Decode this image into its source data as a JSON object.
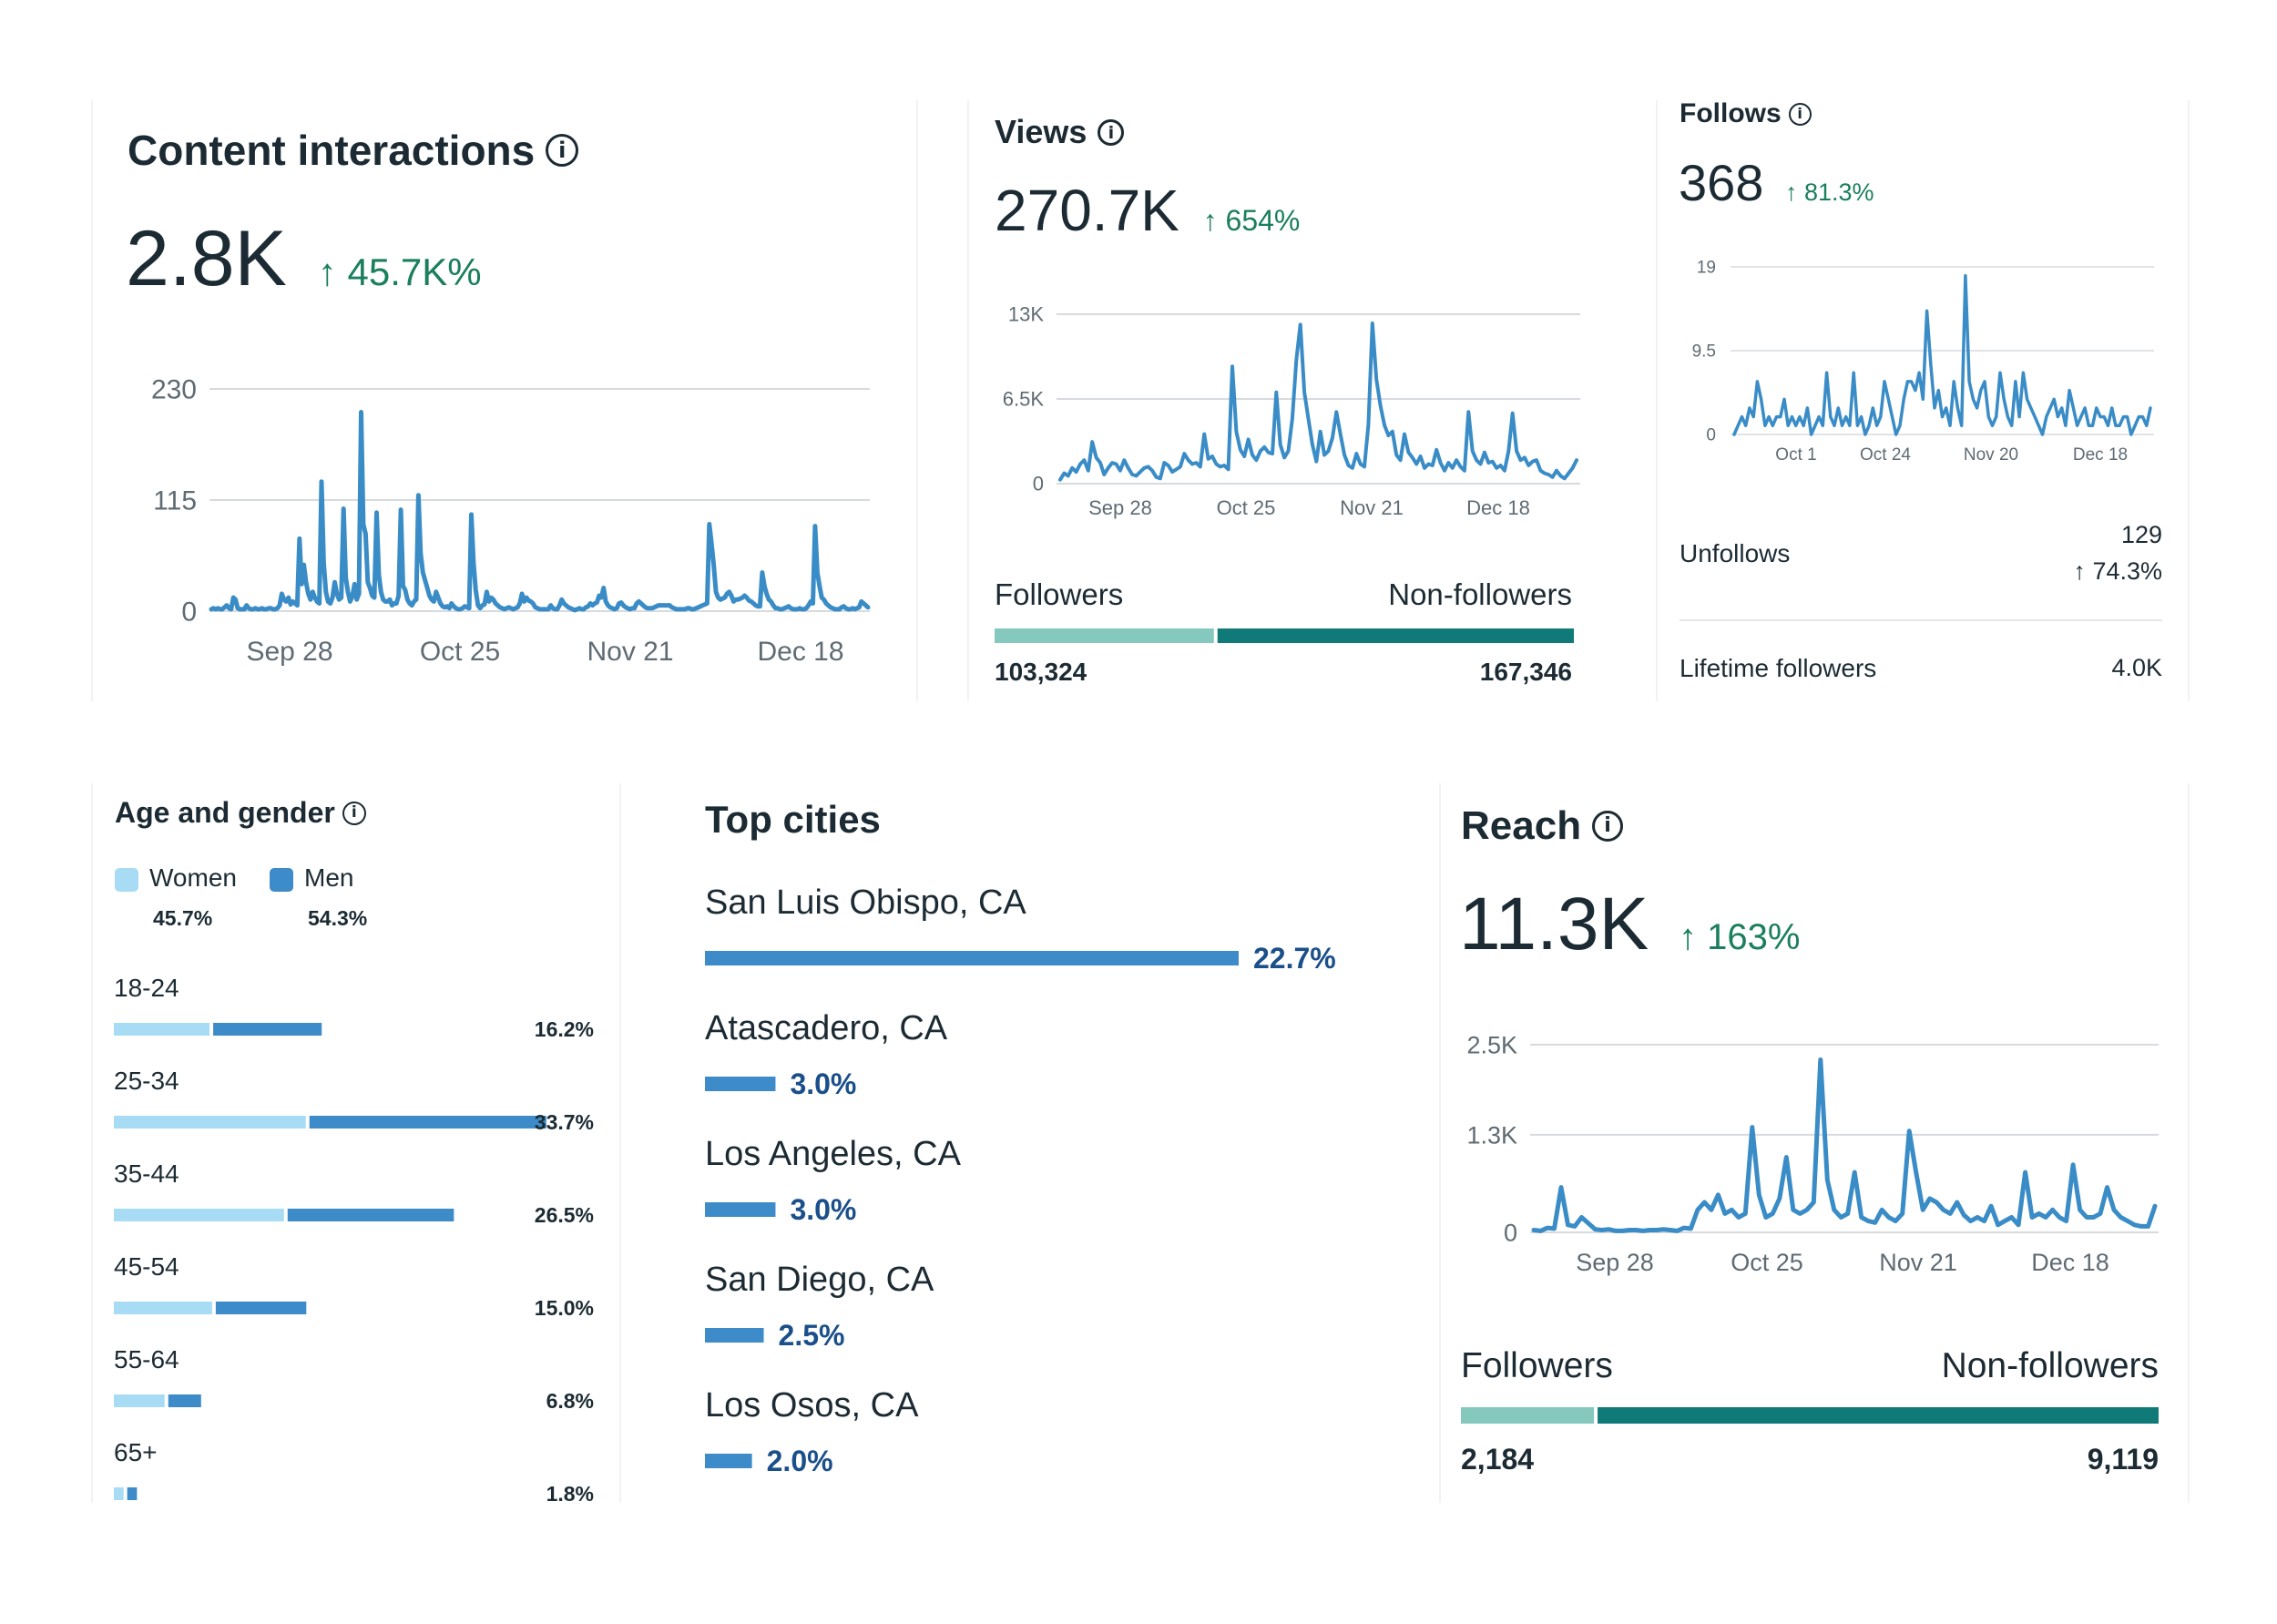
{
  "colors": {
    "line": "#3a8cc7",
    "teal_light": "#85c8bd",
    "teal_dark": "#0f7a78",
    "women": "#a8dcf5",
    "men": "#3d8bc9",
    "city_bar": "#3d8bc9",
    "city_pct": "#1a4f8a",
    "delta": "#1a7f5a",
    "grid": "#d7dade"
  },
  "content_interactions": {
    "title": "Content interactions",
    "value": "2.8K",
    "delta": "↑ 45.7K%",
    "info_icon": "i",
    "chart_data": {
      "type": "line",
      "title": "Content interactions",
      "ylim": [
        0,
        230
      ],
      "yticks": [
        "230",
        "115",
        "0"
      ],
      "ytick_values": [
        230,
        115,
        0
      ],
      "xticks": [
        "Sep 28",
        "Oct 25",
        "Nov 21",
        "Dec 18"
      ],
      "series": [
        {
          "name": "Content interactions",
          "values": [
            2,
            3,
            2,
            3,
            2,
            2,
            4,
            6,
            3,
            2,
            14,
            12,
            3,
            2,
            2,
            2,
            6,
            3,
            2,
            2,
            3,
            2,
            2,
            3,
            2,
            2,
            3,
            3,
            2,
            2,
            3,
            6,
            18,
            12,
            10,
            14,
            7,
            10,
            8,
            6,
            75,
            28,
            48,
            30,
            18,
            12,
            20,
            14,
            10,
            8,
            134,
            50,
            20,
            10,
            8,
            14,
            30,
            18,
            12,
            14,
            106,
            35,
            20,
            10,
            15,
            28,
            12,
            18,
            206,
            90,
            80,
            30,
            24,
            16,
            14,
            102,
            38,
            20,
            12,
            10,
            10,
            12,
            6,
            8,
            8,
            16,
            105,
            26,
            22,
            12,
            8,
            6,
            10,
            12,
            120,
            60,
            40,
            32,
            24,
            16,
            12,
            10,
            20,
            14,
            8,
            5,
            4,
            5,
            3,
            8,
            5,
            3,
            2,
            2,
            3,
            5,
            4,
            3,
            100,
            50,
            22,
            6,
            3,
            6,
            7,
            20,
            10,
            14,
            12,
            8,
            6,
            4,
            3,
            2,
            3,
            4,
            3,
            2,
            3,
            4,
            8,
            18,
            10,
            14,
            11,
            10,
            8,
            4,
            3,
            2,
            2,
            2,
            2,
            2,
            6,
            3,
            2,
            2,
            6,
            12,
            8,
            6,
            4,
            3,
            2,
            1,
            2,
            3,
            2,
            2,
            4,
            5,
            8,
            6,
            8,
            9,
            16,
            14,
            24,
            10,
            6,
            4,
            3,
            2,
            3,
            8,
            9,
            6,
            4,
            3,
            2,
            3,
            3,
            8,
            10,
            8,
            6,
            4,
            3,
            3,
            3,
            4,
            5,
            6,
            6,
            6,
            6,
            6,
            6,
            4,
            3,
            2,
            2,
            2,
            2,
            2,
            3,
            3,
            2,
            2,
            3,
            4,
            5,
            6,
            7,
            8,
            90,
            70,
            48,
            20,
            14,
            12,
            13,
            14,
            18,
            20,
            16,
            10,
            12,
            12,
            13,
            14,
            16,
            14,
            11,
            10,
            8,
            6,
            5,
            5,
            40,
            26,
            18,
            12,
            10,
            6,
            3,
            3,
            2,
            2,
            3,
            4,
            5,
            3,
            2,
            2,
            2,
            3,
            2,
            2,
            3,
            6,
            10,
            8,
            88,
            40,
            26,
            14,
            12,
            8,
            6,
            4,
            3,
            2,
            2,
            2,
            4,
            5,
            3,
            2,
            2,
            3,
            2,
            3,
            4,
            10,
            8,
            6,
            4
          ]
        }
      ]
    }
  },
  "views": {
    "title": "Views",
    "value": "270.7K",
    "delta": "↑ 654%",
    "info_icon": "i",
    "chart_data": {
      "type": "line",
      "title": "Views",
      "ylim": [
        0,
        13000
      ],
      "yticks": [
        "13K",
        "6.5K",
        "0"
      ],
      "ytick_values": [
        13000,
        6500,
        0
      ],
      "xticks": [
        "Sep 28",
        "Oct 25",
        "Nov 21",
        "Dec 18"
      ],
      "series": [
        {
          "name": "Views",
          "values": [
            300,
            800,
            600,
            1200,
            900,
            1500,
            1800,
            1000,
            3200,
            2000,
            1600,
            700,
            1200,
            1600,
            1500,
            1000,
            1800,
            1200,
            700,
            600,
            900,
            1200,
            1300,
            1000,
            500,
            400,
            1600,
            1400,
            900,
            1100,
            1300,
            2300,
            1800,
            1500,
            1600,
            1300,
            3800,
            1900,
            2100,
            1500,
            1300,
            1400,
            1100,
            9000,
            4000,
            2600,
            2100,
            3400,
            2200,
            1800,
            2500,
            2800,
            2400,
            2300,
            7000,
            3000,
            2000,
            2500,
            5000,
            9500,
            12200,
            7000,
            5000,
            3000,
            1700,
            4000,
            2200,
            2500,
            3500,
            5500,
            3800,
            2200,
            1400,
            1200,
            2300,
            1500,
            1300,
            4500,
            12300,
            8000,
            6000,
            4500,
            3700,
            4000,
            2200,
            1800,
            3800,
            2400,
            2000,
            1500,
            2100,
            1200,
            1500,
            1400,
            2600,
            1600,
            1000,
            1600,
            1200,
            1800,
            1300,
            1000,
            5500,
            2500,
            1800,
            1500,
            2400,
            1600,
            1700,
            1200,
            1400,
            1000,
            2500,
            5400,
            2500,
            1800,
            2000,
            1400,
            1700,
            1800,
            1000,
            800,
            700,
            500,
            1000,
            600,
            400,
            800,
            1200,
            1800
          ]
        }
      ]
    }
  },
  "views_breakdown": {
    "left_label": "Followers",
    "right_label": "Non-followers",
    "left_value": "103,324",
    "right_value": "167,346",
    "left_share": 0.3817
  },
  "follows": {
    "title": "Follows",
    "value": "368",
    "delta": "↑ 81.3%",
    "info_icon": "i",
    "chart_data": {
      "type": "line",
      "title": "Follows",
      "ylim": [
        0,
        19
      ],
      "yticks": [
        "19",
        "9.5",
        "0"
      ],
      "ytick_values": [
        19,
        9.5,
        0
      ],
      "xticks": [
        "Oct 1",
        "Oct 24",
        "Nov 20",
        "Dec 18"
      ],
      "series": [
        {
          "name": "Follows",
          "values": [
            0,
            1,
            2,
            1,
            3,
            2,
            6,
            4,
            1,
            2,
            1,
            2,
            2,
            4,
            1,
            2,
            1,
            2,
            1,
            3,
            0,
            1,
            2,
            1,
            7,
            2,
            1,
            3,
            1,
            2,
            1,
            7,
            1,
            2,
            0,
            1,
            3,
            1,
            2,
            6,
            4,
            2,
            0,
            1,
            4,
            6,
            6,
            5,
            7,
            4,
            14,
            8,
            3,
            5,
            2,
            3,
            1,
            6,
            3,
            1,
            18,
            6,
            4,
            3,
            5,
            6,
            2,
            1,
            2,
            7,
            4,
            2,
            1,
            6,
            2,
            7,
            4,
            3,
            2,
            1,
            0,
            2,
            3,
            4,
            2,
            3,
            1,
            5,
            3,
            1,
            2,
            3,
            1,
            1,
            3,
            2,
            2,
            1,
            3,
            1,
            1,
            2,
            2,
            0,
            1,
            2,
            2,
            1,
            3
          ]
        }
      ]
    }
  },
  "unfollows": {
    "label": "Unfollows",
    "value": "129",
    "delta": "↑ 74.3%"
  },
  "lifetime": {
    "label": "Lifetime followers",
    "value": "4.0K"
  },
  "age_gender": {
    "title": "Age and gender",
    "info_icon": "i",
    "legend": [
      {
        "name": "Women",
        "pct": "45.7%"
      },
      {
        "name": "Men",
        "pct": "54.3%"
      }
    ],
    "chart_data": {
      "type": "bar",
      "title": "Age and gender",
      "categories": [
        "18-24",
        "25-34",
        "35-44",
        "45-54",
        "55-64",
        "65+"
      ],
      "series": [
        {
          "name": "Women",
          "values": [
            7.6,
            15.1,
            13.4,
            7.8,
            4.1,
            0.9
          ]
        },
        {
          "name": "Men",
          "values": [
            8.6,
            18.6,
            13.1,
            7.2,
            2.7,
            0.9
          ]
        }
      ],
      "totals": [
        "16.2%",
        "33.7%",
        "26.5%",
        "15.0%",
        "6.8%",
        "1.8%"
      ]
    }
  },
  "top_cities": {
    "title": "Top cities",
    "chart_data": {
      "type": "bar",
      "title": "Top cities",
      "categories": [
        "San Luis Obispo, CA",
        "Atascadero, CA",
        "Los Angeles, CA",
        "San Diego, CA",
        "Los Osos, CA"
      ],
      "values": [
        22.7,
        3.0,
        3.0,
        2.5,
        2.0
      ],
      "labels": [
        "22.7%",
        "3.0%",
        "3.0%",
        "2.5%",
        "2.0%"
      ]
    }
  },
  "reach": {
    "title": "Reach",
    "value": "11.3K",
    "delta": "↑ 163%",
    "info_icon": "i",
    "chart_data": {
      "type": "line",
      "title": "Reach",
      "ylim": [
        0,
        2500
      ],
      "yticks": [
        "2.5K",
        "1.3K",
        "0"
      ],
      "ytick_values": [
        2500,
        1300,
        0
      ],
      "xticks": [
        "Sep 28",
        "Oct 25",
        "Nov 21",
        "Dec 18"
      ],
      "series": [
        {
          "name": "Reach",
          "values": [
            30,
            20,
            60,
            50,
            600,
            100,
            80,
            200,
            120,
            40,
            30,
            40,
            20,
            20,
            30,
            30,
            20,
            30,
            30,
            40,
            30,
            20,
            60,
            50,
            300,
            400,
            300,
            500,
            250,
            300,
            200,
            250,
            1400,
            500,
            200,
            250,
            450,
            1000,
            300,
            250,
            300,
            400,
            2300,
            700,
            300,
            200,
            250,
            800,
            200,
            150,
            130,
            300,
            200,
            150,
            250,
            1350,
            800,
            300,
            450,
            400,
            300,
            250,
            400,
            230,
            150,
            200,
            150,
            350,
            100,
            150,
            200,
            100,
            800,
            200,
            250,
            200,
            300,
            200,
            150,
            900,
            300,
            200,
            200,
            250,
            600,
            300,
            200,
            150,
            100,
            80,
            80,
            350
          ]
        }
      ]
    }
  },
  "reach_breakdown": {
    "left_label": "Followers",
    "right_label": "Non-followers",
    "left_value": "2,184",
    "right_value": "9,119",
    "left_share": 0.1933
  }
}
